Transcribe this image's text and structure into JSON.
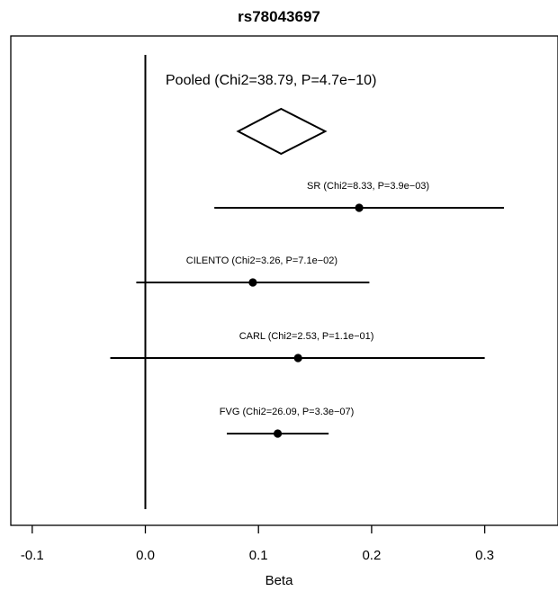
{
  "chart_data": {
    "type": "forest",
    "title": "rs78043697",
    "xlabel": "Beta",
    "xlim": [
      -0.1,
      0.35
    ],
    "xticks": [
      "-0.1",
      "0.0",
      "0.1",
      "0.2",
      "0.3"
    ],
    "xtick_values": [
      -0.1,
      0.0,
      0.1,
      0.2,
      0.3
    ],
    "reference_line": 0.0,
    "grid": false,
    "pooled": {
      "label": "Pooled (Chi2=38.79, P=4.7e−10)",
      "estimate": 0.12,
      "ci_low": 0.082,
      "ci_high": 0.159
    },
    "studies": [
      {
        "label": "SR (Chi2=8.33, P=3.9e−03)",
        "beta": 0.189,
        "ci_low": 0.061,
        "ci_high": 0.317
      },
      {
        "label": "CILENTO (Chi2=3.26, P=7.1e−02)",
        "beta": 0.095,
        "ci_low": -0.008,
        "ci_high": 0.198
      },
      {
        "label": "CARL (Chi2=2.53, P=1.1e−01)",
        "beta": 0.135,
        "ci_low": -0.031,
        "ci_high": 0.3
      },
      {
        "label": "FVG (Chi2=26.09, P=3.3e−07)",
        "beta": 0.117,
        "ci_low": 0.072,
        "ci_high": 0.162
      }
    ]
  }
}
